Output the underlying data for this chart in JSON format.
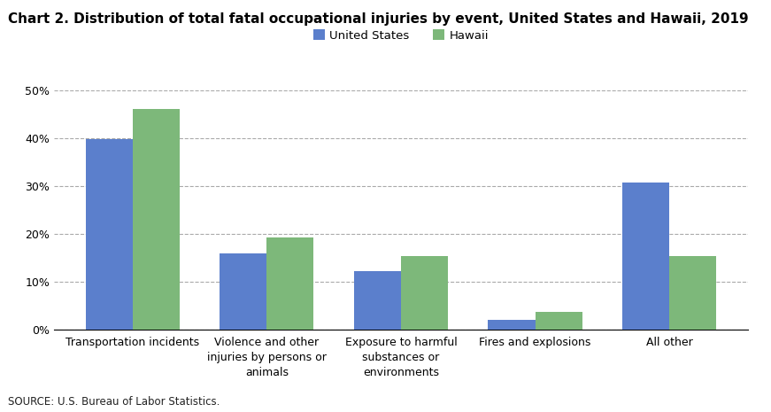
{
  "title": "Chart 2. Distribution of total fatal occupational injuries by event, United States and Hawaii, 2019",
  "categories": [
    "Transportation incidents",
    "Violence and other\ninjuries by persons or\nanimals",
    "Exposure to harmful\nsubstances or\nenvironments",
    "Fires and explosions",
    "All other"
  ],
  "us_values": [
    39.8,
    16.0,
    12.2,
    2.0,
    30.8
  ],
  "hawaii_values": [
    46.2,
    19.3,
    15.4,
    3.8,
    15.4
  ],
  "us_color": "#5b7fcc",
  "hawaii_color": "#7db87a",
  "us_label": "United States",
  "hawaii_label": "Hawaii",
  "ylim": [
    0,
    50
  ],
  "yticks": [
    0,
    10,
    20,
    30,
    40,
    50
  ],
  "source": "SOURCE: U.S. Bureau of Labor Statistics.",
  "bar_width": 0.35,
  "background_color": "#ffffff",
  "grid_color": "#aaaaaa",
  "title_fontsize": 11,
  "tick_fontsize": 9,
  "legend_fontsize": 9.5
}
